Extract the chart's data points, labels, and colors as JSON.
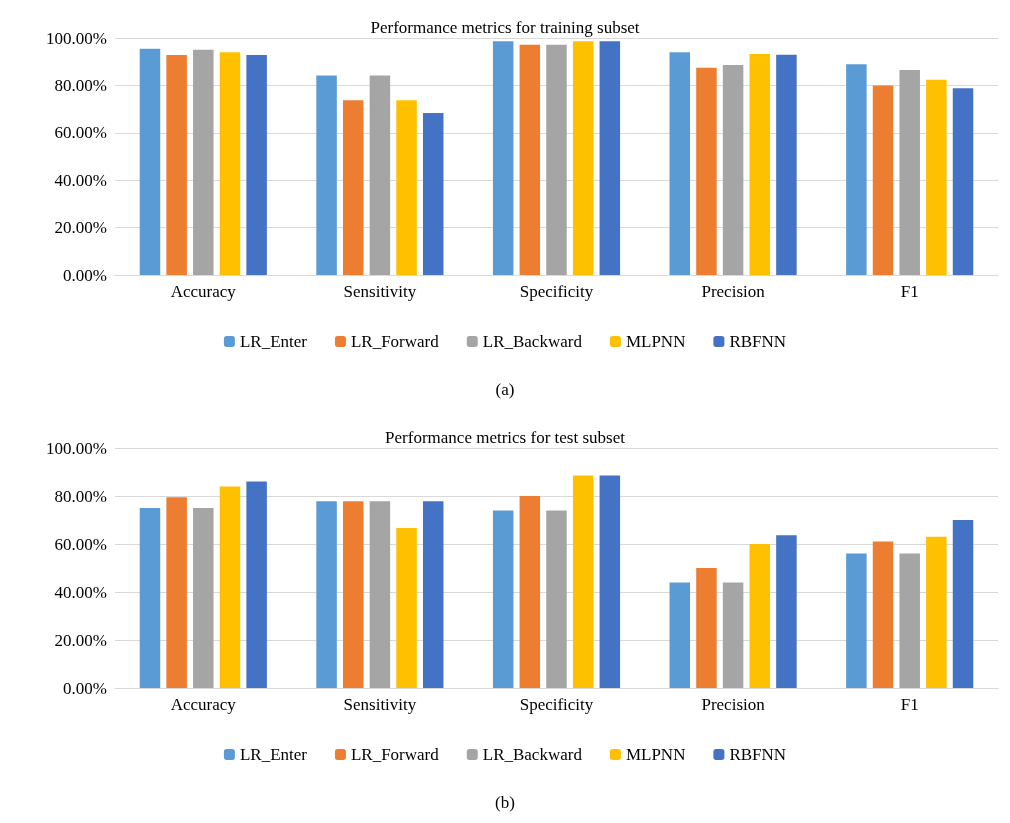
{
  "chart_data": [
    {
      "type": "bar",
      "title": "Performance metrics for training subset",
      "categories": [
        "Accuracy",
        "Sensitivity",
        "Specificity",
        "Precision",
        "F1"
      ],
      "series": [
        {
          "name": "LR_Enter",
          "color": "#5b9bd5",
          "values": [
            95.5,
            84.2,
            98.6,
            94.0,
            88.9
          ]
        },
        {
          "name": "LR_Forward",
          "color": "#ed7d31",
          "values": [
            92.8,
            73.7,
            97.2,
            87.5,
            80.0
          ]
        },
        {
          "name": "LR_Backward",
          "color": "#a5a5a5",
          "values": [
            95.0,
            84.2,
            97.2,
            88.6,
            86.5
          ]
        },
        {
          "name": "MLPNN",
          "color": "#ffc000",
          "values": [
            94.0,
            73.7,
            98.6,
            93.3,
            82.4
          ]
        },
        {
          "name": "RBFNN",
          "color": "#4472c4",
          "values": [
            92.8,
            68.4,
            98.6,
            92.9,
            78.8
          ]
        }
      ],
      "ylim": [
        0,
        100
      ],
      "yticks": [
        {
          "value": 0,
          "label": "0.00%"
        },
        {
          "value": 20,
          "label": "20.00%"
        },
        {
          "value": 40,
          "label": "40.00%"
        },
        {
          "value": 60,
          "label": "60.00%"
        },
        {
          "value": 80,
          "label": "80.00%"
        },
        {
          "value": 100,
          "label": "100.00%"
        }
      ],
      "grid": "y",
      "legend": "bottom",
      "annotations": [
        "(a)"
      ]
    },
    {
      "type": "bar",
      "title": "Performance metrics for test subset",
      "categories": [
        "Accuracy",
        "Sensitivity",
        "Specificity",
        "Precision",
        "F1"
      ],
      "series": [
        {
          "name": "LR_Enter",
          "color": "#5b9bd5",
          "values": [
            75.0,
            77.8,
            74.0,
            44.0,
            56.0
          ]
        },
        {
          "name": "LR_Forward",
          "color": "#ed7d31",
          "values": [
            79.5,
            77.8,
            80.0,
            50.0,
            61.0
          ]
        },
        {
          "name": "LR_Backward",
          "color": "#a5a5a5",
          "values": [
            75.0,
            77.8,
            74.0,
            44.0,
            56.0
          ]
        },
        {
          "name": "MLPNN",
          "color": "#ffc000",
          "values": [
            84.0,
            66.7,
            88.5,
            60.0,
            63.0
          ]
        },
        {
          "name": "RBFNN",
          "color": "#4472c4",
          "values": [
            86.0,
            77.8,
            88.5,
            63.6,
            70.0
          ]
        }
      ],
      "ylim": [
        0,
        100
      ],
      "yticks": [
        {
          "value": 0,
          "label": "0.00%"
        },
        {
          "value": 20,
          "label": "20.00%"
        },
        {
          "value": 40,
          "label": "40.00%"
        },
        {
          "value": 60,
          "label": "60.00%"
        },
        {
          "value": 80,
          "label": "80.00%"
        },
        {
          "value": 100,
          "label": "100.00%"
        }
      ],
      "grid": "y",
      "legend": "bottom",
      "annotations": [
        "(b)"
      ]
    }
  ]
}
